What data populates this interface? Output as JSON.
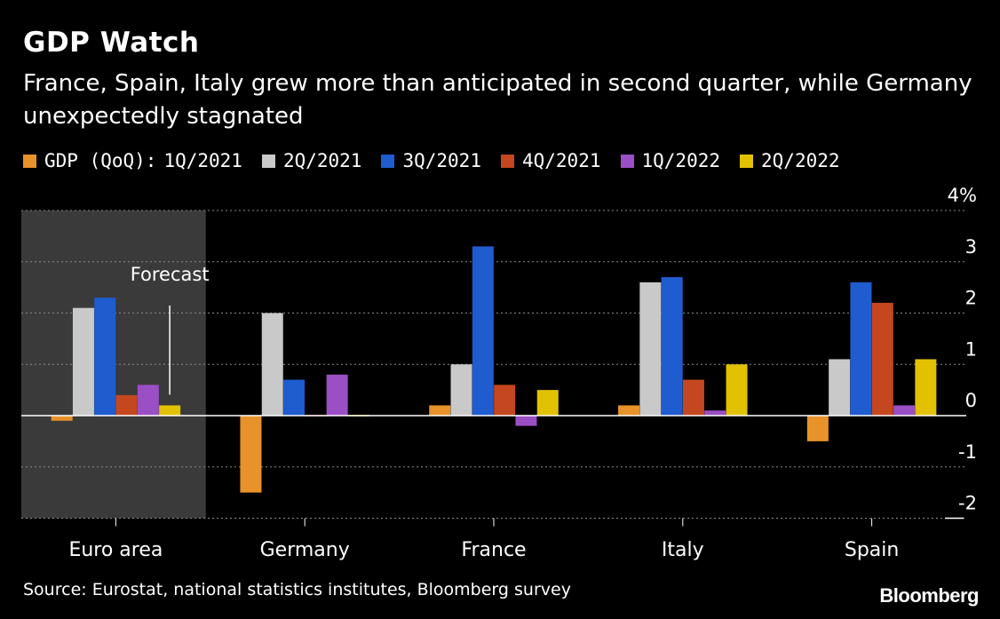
{
  "title": "GDP Watch",
  "subtitle": "France, Spain, Italy grew more than anticipated in second quarter, while Germany unexpectedly stagnated",
  "legend_prefix": "GDP (QoQ):",
  "annotation": "Forecast",
  "source": "Source: Eurostat, national statistics institutes, Bloomberg survey",
  "brand": "Bloomberg",
  "colors": {
    "background": "#000000",
    "forecast_panel": "#3a3a3a",
    "grid": "#8a8a8a",
    "text": "#ffffff"
  },
  "chart_data": {
    "type": "bar",
    "categories": [
      "Euro area",
      "Germany",
      "France",
      "Italy",
      "Spain"
    ],
    "series": [
      {
        "name": "1Q/2021",
        "color": "#e8922a",
        "values": [
          -0.1,
          -1.5,
          0.2,
          0.2,
          -0.5
        ]
      },
      {
        "name": "2Q/2021",
        "color": "#c9c9c9",
        "values": [
          2.1,
          2.0,
          1.0,
          2.6,
          1.1
        ]
      },
      {
        "name": "3Q/2021",
        "color": "#1f5ccf",
        "values": [
          2.3,
          0.7,
          3.3,
          2.7,
          2.6
        ]
      },
      {
        "name": "4Q/2021",
        "color": "#c4471f",
        "values": [
          0.4,
          0.0,
          0.6,
          0.7,
          2.2
        ]
      },
      {
        "name": "1Q/2022",
        "color": "#9b4fc4",
        "values": [
          0.6,
          0.8,
          -0.2,
          0.1,
          0.2
        ]
      },
      {
        "name": "2Q/2022",
        "color": "#e2c200",
        "values": [
          0.2,
          0.0,
          0.5,
          1.0,
          1.1
        ]
      }
    ],
    "y_ticks": [
      "4%",
      "3",
      "2",
      "1",
      "0",
      "-1",
      "-2"
    ],
    "ylim": [
      -2,
      4
    ],
    "forecast_category": "Euro area",
    "forecast_series": "2Q/2022",
    "grid": true,
    "legend_position": "top",
    "xlabel": "",
    "ylabel": ""
  }
}
